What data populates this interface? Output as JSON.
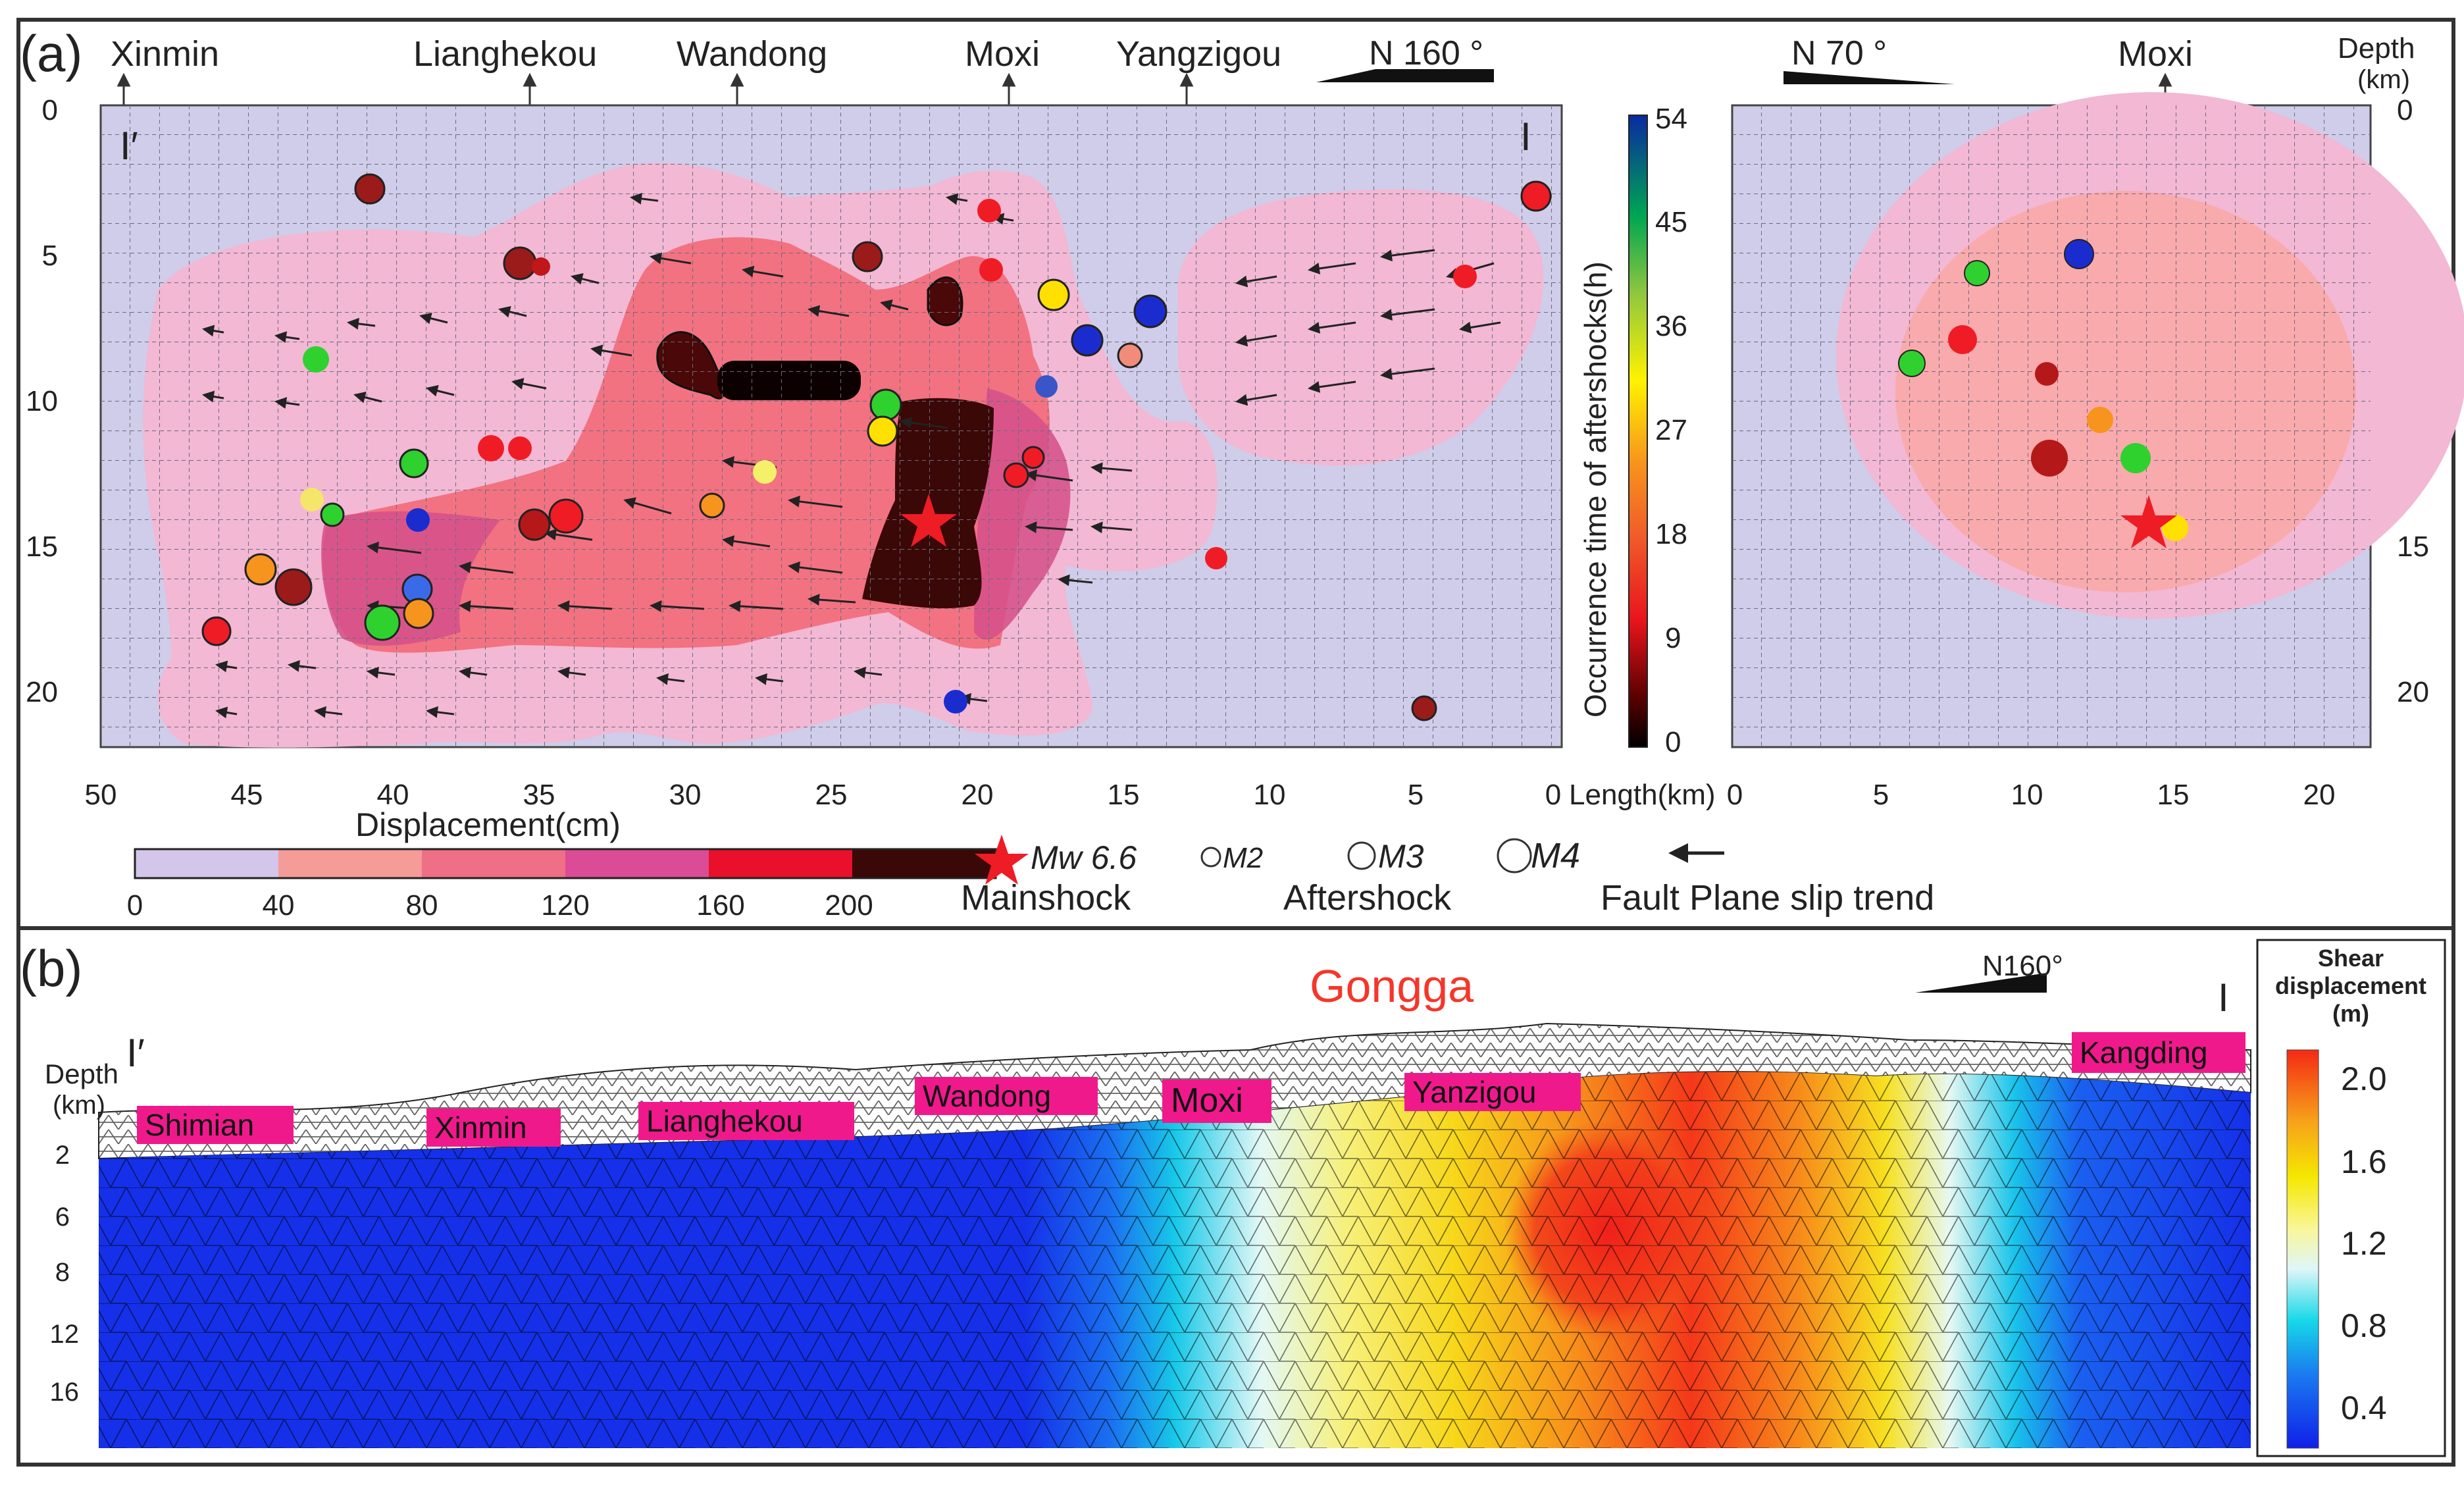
{
  "panel_a": {
    "label": "(a)",
    "section_left": "I′",
    "section_right": "I",
    "towns_top": [
      "Xinmin",
      "Lianghekou",
      "Wandong",
      "Moxi",
      "Yangzigou"
    ],
    "azimuth_left": "N 160 °",
    "azimuth_right": "N 70 °",
    "right_town": "Moxi",
    "depth_title": "Depth",
    "depth_unit": "(km)",
    "y_ticks": [
      "0",
      "5",
      "10",
      "15",
      "20"
    ],
    "x_ticks_left": [
      "50",
      "45",
      "40",
      "35",
      "30",
      "25",
      "20",
      "15",
      "10",
      "5",
      "0"
    ],
    "x_ticks_right": [
      "0",
      "5",
      "10",
      "15",
      "20"
    ],
    "length_label": "Length(km)",
    "colorbar_time": {
      "title": "Occurrence time of aftershocks(h)",
      "ticks": [
        "54",
        "45",
        "36",
        "27",
        "18",
        "9",
        "0"
      ]
    },
    "displacement_bar": {
      "title": "Displacement(cm)",
      "ticks": [
        "0",
        "40",
        "80",
        "120",
        "160",
        "200"
      ]
    },
    "legend": {
      "mainshock_mag": "Mw 6.6",
      "mainshock_label": "Mainshock",
      "m2": "M2",
      "m3": "M3",
      "m4": "M4",
      "aftershock_label": "Aftershock",
      "slip_label": "Fault Plane slip trend"
    }
  },
  "panel_b": {
    "label": "(b)",
    "title": "Gongga",
    "azimuth": "N160°",
    "section_left": "I′",
    "section_right": "I",
    "depth_title": "Depth",
    "depth_unit": "(km)",
    "depth_ticks": [
      "2",
      "6",
      "8",
      "12",
      "16"
    ],
    "towns": [
      "Shimian",
      "Xinmin",
      "Lianghekou",
      "Wandong",
      "Moxi",
      "Yanzigou",
      "Kangding"
    ],
    "colorbar": {
      "title_1": "Shear",
      "title_2": "displacement",
      "unit": "(m)",
      "ticks": [
        "2.0",
        "1.6",
        "1.2",
        "0.8",
        "0.4"
      ]
    }
  },
  "colors": {
    "plot_bg": "#cfcde9",
    "pink_light": "#f2b8d4",
    "red_zone": "#f26b7a",
    "magenta": "#d5518a",
    "dark_slip": "#3a0806",
    "label_pink": "#f0198c",
    "title_red": "#f5362a",
    "mesh_blue": "#1530e8"
  }
}
